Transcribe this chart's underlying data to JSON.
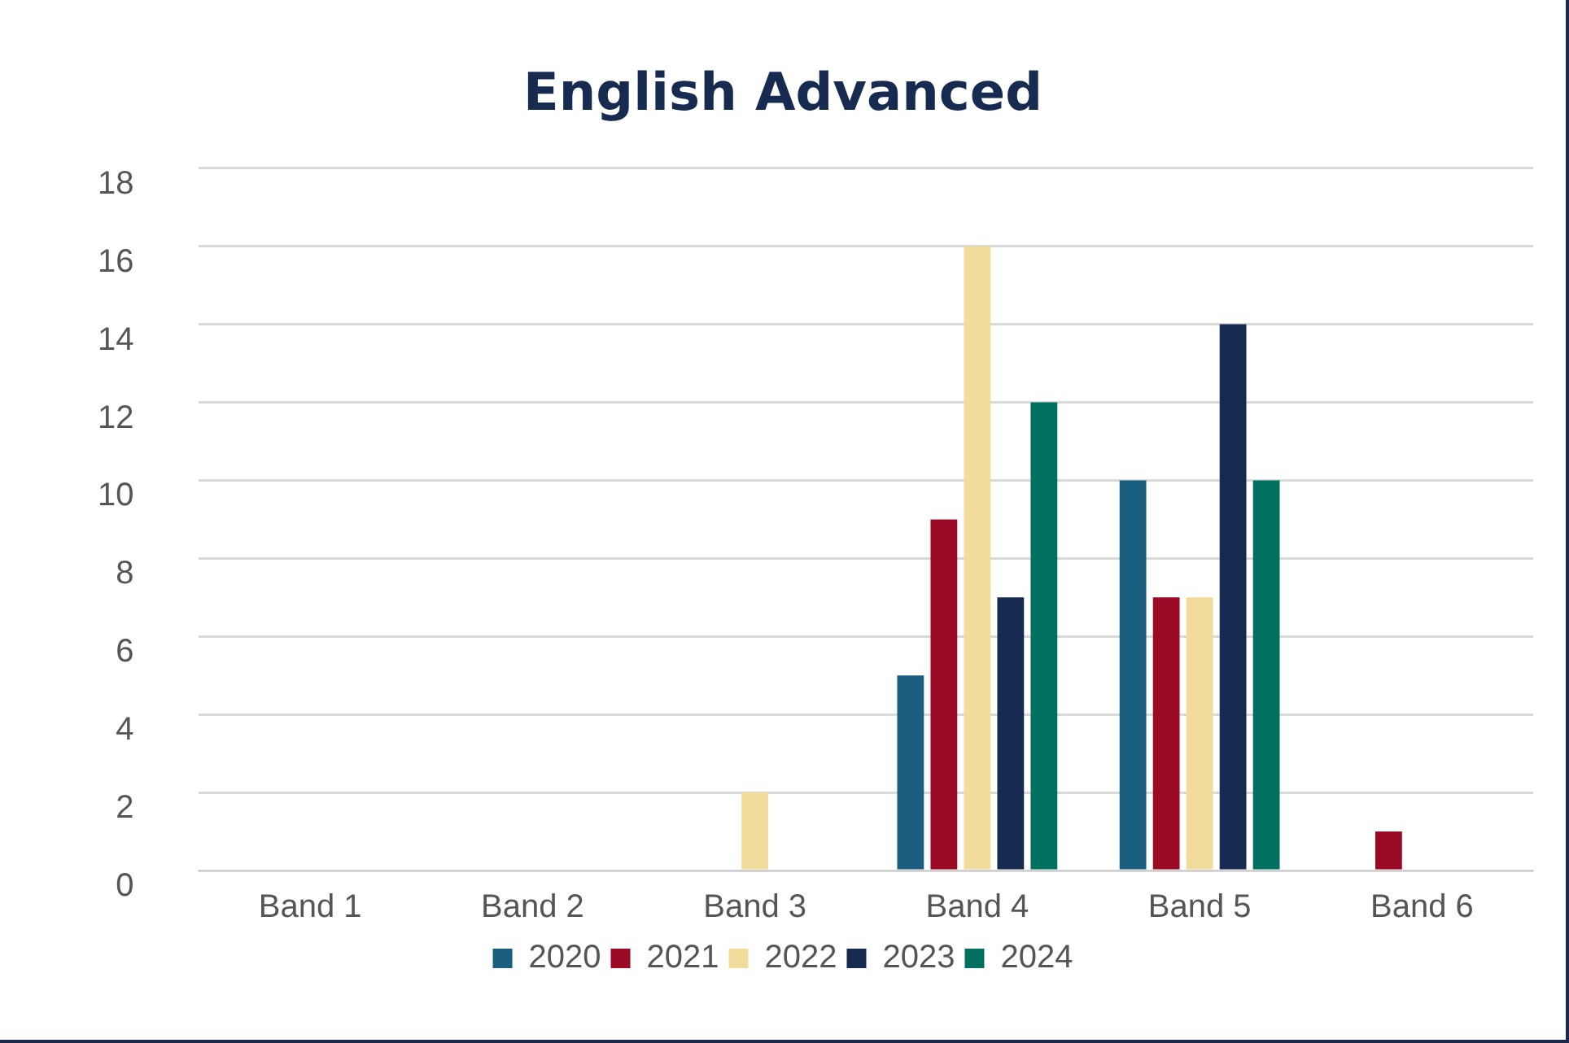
{
  "chart_data": {
    "type": "bar",
    "title": "English Advanced",
    "categories": [
      "Band 1",
      "Band 2",
      "Band 3",
      "Band 4",
      "Band 5",
      "Band 6"
    ],
    "series": [
      {
        "name": "2020",
        "color": "#1a5e80",
        "values": [
          0,
          0,
          0,
          5,
          10,
          0
        ]
      },
      {
        "name": "2021",
        "color": "#9b0a24",
        "values": [
          0,
          0,
          0,
          9,
          7,
          1
        ]
      },
      {
        "name": "2022",
        "color": "#f2dc9b",
        "values": [
          0,
          0,
          2,
          16,
          7,
          0
        ]
      },
      {
        "name": "2023",
        "color": "#172b50",
        "values": [
          0,
          0,
          0,
          7,
          14,
          0
        ]
      },
      {
        "name": "2024",
        "color": "#007060",
        "values": [
          0,
          0,
          0,
          12,
          10,
          0
        ]
      }
    ],
    "ylim": [
      0,
      18
    ],
    "yticks": [
      0,
      2,
      4,
      6,
      8,
      10,
      12,
      14,
      16,
      18
    ],
    "grid": "y",
    "legend": "bottom"
  }
}
